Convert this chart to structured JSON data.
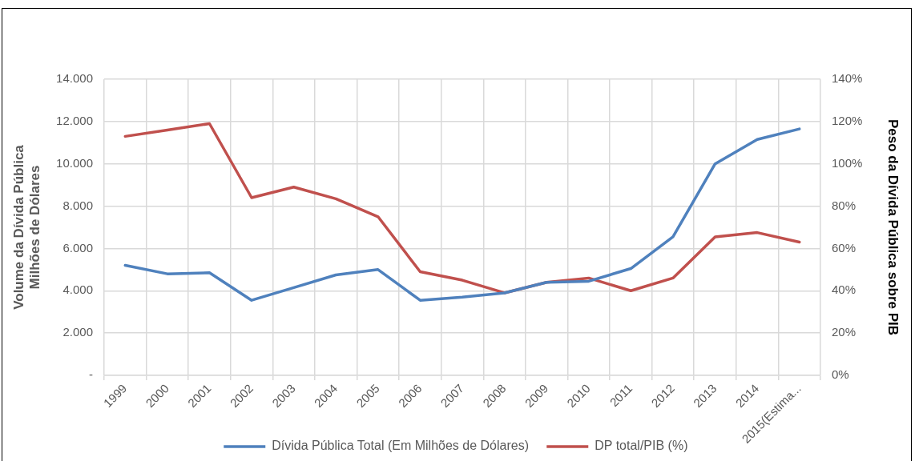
{
  "chart_data": {
    "type": "line",
    "categories": [
      "1999",
      "2000",
      "2001",
      "2002",
      "2003",
      "2004",
      "2005",
      "2006",
      "2007",
      "2008",
      "2009",
      "2010",
      "2011",
      "2012",
      "2013",
      "2014",
      "2015(Estima..."
    ],
    "series": [
      {
        "name": "Dívida Pública Total (Em Milhões de Dólares)",
        "color": "#4f81bd",
        "values": [
          5200,
          4800,
          4850,
          3550,
          4150,
          4750,
          5000,
          3550,
          3700,
          3900,
          4400,
          4450,
          5050,
          6550,
          10000,
          11150,
          11650
        ]
      },
      {
        "name": "DP total/PIB (%)",
        "color": "#c0504d",
        "axis": "y2",
        "values": [
          113,
          116,
          119,
          84,
          89,
          83.5,
          75,
          49,
          45,
          39,
          44,
          46,
          40,
          46,
          65.5,
          67.5,
          63
        ]
      }
    ],
    "ylabel": "Volume da Dívida Pública\nMilhões de Dólares",
    "y2label": "Peso da Dívida Pública sobre PIB",
    "ylim": [
      0,
      14000
    ],
    "yticks": [
      {
        "value": 0,
        "label": "-"
      },
      {
        "value": 2000,
        "label": "2.000"
      },
      {
        "value": 4000,
        "label": "4.000"
      },
      {
        "value": 6000,
        "label": "6.000"
      },
      {
        "value": 8000,
        "label": "8.000"
      },
      {
        "value": 10000,
        "label": "10.000"
      },
      {
        "value": 12000,
        "label": "12.000"
      },
      {
        "value": 14000,
        "label": "14.000"
      }
    ],
    "y2lim": [
      0,
      140
    ],
    "y2ticks": [
      {
        "value": 0,
        "label": "0%"
      },
      {
        "value": 20,
        "label": "20%"
      },
      {
        "value": 40,
        "label": "40%"
      },
      {
        "value": 60,
        "label": "60%"
      },
      {
        "value": 80,
        "label": "80%"
      },
      {
        "value": 100,
        "label": "100%"
      },
      {
        "value": 120,
        "label": "120%"
      },
      {
        "value": 140,
        "label": "140%"
      }
    ],
    "grid": true,
    "legend": "bottom",
    "marker": "none",
    "line_style": "solid"
  }
}
